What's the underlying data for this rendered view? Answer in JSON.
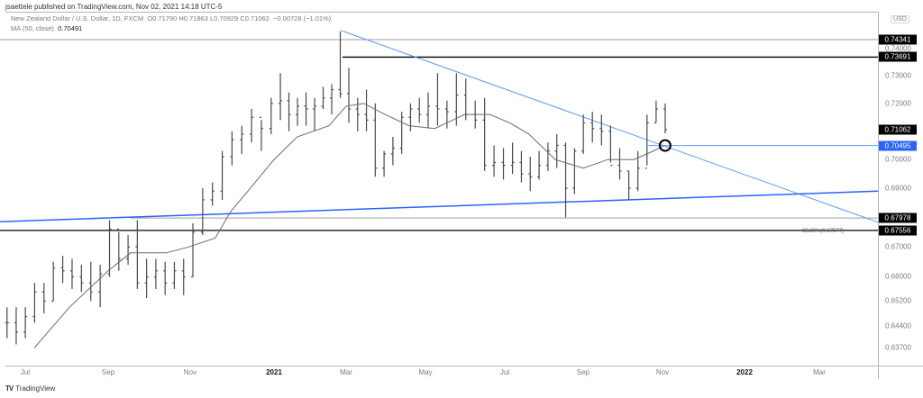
{
  "header": {
    "published": "jsaettele published on TradingView.com, Nov 02, 2021 14:18 UTC-5",
    "symbol": "New Zealand Dollar / U.S. Dollar, 1D, FXCM",
    "ohlc": "O0.71790 H0.71863 L0.70929 C0.71062",
    "change": "−0.00728 (−1.01%)",
    "ma_label": "MA (50, close)",
    "ma_value": "0.70491"
  },
  "currency": "USD",
  "footer": {
    "logo_text": "TradingView"
  },
  "chart_data": {
    "type": "bar",
    "scale": "log",
    "ylim": [
      0.6335,
      0.749
    ],
    "grid": false,
    "colors": {
      "bars": "#4a4a4a",
      "ma": "#6b6b6b",
      "trendline": "#5b9cf6",
      "support": "#2962ff",
      "price_badge": "#000000",
      "ma_badge": "#2962ff"
    },
    "x_ticks": [
      "Jul",
      "Sep",
      "Nov",
      "2021",
      "Mar",
      "May",
      "Jul",
      "Sep",
      "Nov",
      "2022",
      "Mar"
    ],
    "y_ticks": [
      "0.74000",
      "0.73000",
      "0.72000",
      "0.70000",
      "0.69000",
      "0.67000",
      "0.66000",
      "0.65200",
      "0.64400",
      "0.63700"
    ],
    "price_badges": [
      {
        "value": "0.74341",
        "style": "black"
      },
      {
        "value": "0.73691",
        "style": "black"
      },
      {
        "value": "0.71062",
        "style": "black"
      },
      {
        "value": "0.70495",
        "style": "blue"
      },
      {
        "value": "0.67978",
        "style": "black"
      },
      {
        "value": "0.67556",
        "style": "black"
      }
    ],
    "fib_label": "38.20%(0.67577)",
    "weekly_bars_fields": [
      "week",
      "high",
      "low",
      "close"
    ],
    "weekly_bars": [
      [
        "2020-06-15",
        0.65,
        0.64,
        0.645
      ],
      [
        "2020-06-22",
        0.65,
        0.638,
        0.642
      ],
      [
        "2020-06-29",
        0.65,
        0.64,
        0.647
      ],
      [
        "2020-07-06",
        0.658,
        0.645,
        0.655
      ],
      [
        "2020-07-13",
        0.658,
        0.648,
        0.652
      ],
      [
        "2020-07-20",
        0.665,
        0.652,
        0.663
      ],
      [
        "2020-07-27",
        0.667,
        0.658,
        0.662
      ],
      [
        "2020-08-03",
        0.666,
        0.656,
        0.66
      ],
      [
        "2020-08-10",
        0.664,
        0.655,
        0.658
      ],
      [
        "2020-08-17",
        0.665,
        0.652,
        0.655
      ],
      [
        "2020-08-24",
        0.664,
        0.65,
        0.661
      ],
      [
        "2020-08-31",
        0.679,
        0.66,
        0.676
      ],
      [
        "2020-09-07",
        0.675,
        0.662,
        0.666
      ],
      [
        "2020-09-14",
        0.674,
        0.664,
        0.67
      ],
      [
        "2020-09-21",
        0.679,
        0.656,
        0.658
      ],
      [
        "2020-09-28",
        0.666,
        0.653,
        0.66
      ],
      [
        "2020-10-05",
        0.666,
        0.656,
        0.662
      ],
      [
        "2020-10-12",
        0.665,
        0.654,
        0.658
      ],
      [
        "2020-10-19",
        0.665,
        0.656,
        0.662
      ],
      [
        "2020-10-26",
        0.666,
        0.654,
        0.66
      ],
      [
        "2020-11-02",
        0.678,
        0.66,
        0.675
      ],
      [
        "2020-11-09",
        0.69,
        0.674,
        0.686
      ],
      [
        "2020-11-16",
        0.692,
        0.684,
        0.689
      ],
      [
        "2020-11-23",
        0.703,
        0.686,
        0.701
      ],
      [
        "2020-11-30",
        0.71,
        0.698,
        0.707
      ],
      [
        "2020-12-07",
        0.712,
        0.702,
        0.709
      ],
      [
        "2020-12-14",
        0.718,
        0.706,
        0.715
      ],
      [
        "2020-12-21",
        0.714,
        0.703,
        0.711
      ],
      [
        "2020-12-28",
        0.722,
        0.709,
        0.72
      ],
      [
        "2021-01-04",
        0.731,
        0.714,
        0.721
      ],
      [
        "2021-01-11",
        0.724,
        0.71,
        0.716
      ],
      [
        "2021-01-18",
        0.722,
        0.712,
        0.719
      ],
      [
        "2021-01-25",
        0.724,
        0.712,
        0.718
      ],
      [
        "2021-02-01",
        0.722,
        0.71,
        0.719
      ],
      [
        "2021-02-08",
        0.726,
        0.718,
        0.722
      ],
      [
        "2021-02-15",
        0.727,
        0.716,
        0.725
      ],
      [
        "2021-02-22",
        0.7465,
        0.722,
        0.7235
      ],
      [
        "2021-03-01",
        0.733,
        0.713,
        0.718
      ],
      [
        "2021-03-08",
        0.722,
        0.71,
        0.716
      ],
      [
        "2021-03-15",
        0.725,
        0.71,
        0.714
      ],
      [
        "2021-03-22",
        0.72,
        0.694,
        0.697
      ],
      [
        "2021-03-29",
        0.703,
        0.694,
        0.702
      ],
      [
        "2021-04-05",
        0.708,
        0.698,
        0.704
      ],
      [
        "2021-04-12",
        0.717,
        0.702,
        0.715
      ],
      [
        "2021-04-19",
        0.72,
        0.71,
        0.718
      ],
      [
        "2021-04-26",
        0.722,
        0.713,
        0.716
      ],
      [
        "2021-05-03",
        0.724,
        0.711,
        0.719
      ],
      [
        "2021-05-10",
        0.731,
        0.712,
        0.718
      ],
      [
        "2021-05-17",
        0.721,
        0.711,
        0.717
      ],
      [
        "2021-05-24",
        0.731,
        0.712,
        0.723
      ],
      [
        "2021-05-31",
        0.729,
        0.714,
        0.716
      ],
      [
        "2021-06-07",
        0.721,
        0.711,
        0.714
      ],
      [
        "2021-06-14",
        0.722,
        0.696,
        0.698
      ],
      [
        "2021-06-21",
        0.705,
        0.694,
        0.699
      ],
      [
        "2021-06-28",
        0.704,
        0.693,
        0.698
      ],
      [
        "2021-07-05",
        0.706,
        0.695,
        0.699
      ],
      [
        "2021-07-12",
        0.703,
        0.692,
        0.695
      ],
      [
        "2021-07-19",
        0.701,
        0.689,
        0.694
      ],
      [
        "2021-07-26",
        0.703,
        0.693,
        0.698
      ],
      [
        "2021-08-02",
        0.706,
        0.696,
        0.703
      ],
      [
        "2021-08-09",
        0.709,
        0.697,
        0.705
      ],
      [
        "2021-08-16",
        0.706,
        0.68,
        0.69
      ],
      [
        "2021-08-23",
        0.704,
        0.688,
        0.703
      ],
      [
        "2021-08-30",
        0.716,
        0.702,
        0.713
      ],
      [
        "2021-09-06",
        0.717,
        0.706,
        0.711
      ],
      [
        "2021-09-13",
        0.716,
        0.705,
        0.71
      ],
      [
        "2021-09-20",
        0.712,
        0.699,
        0.698
      ],
      [
        "2021-09-27",
        0.704,
        0.693,
        0.696
      ],
      [
        "2021-10-04",
        0.696,
        0.686,
        0.69
      ],
      [
        "2021-10-11",
        0.703,
        0.689,
        0.697
      ],
      [
        "2021-10-18",
        0.716,
        0.698,
        0.713
      ],
      [
        "2021-10-25",
        0.721,
        0.713,
        0.718
      ],
      [
        "2021-11-01",
        0.72,
        0.7093,
        0.7106
      ]
    ],
    "ma50": [
      [
        "2020-07-08",
        0.637
      ],
      [
        "2020-08-03",
        0.65
      ],
      [
        "2020-09-01",
        0.662
      ],
      [
        "2020-09-18",
        0.668
      ],
      [
        "2020-10-15",
        0.668
      ],
      [
        "2020-11-01",
        0.67
      ],
      [
        "2020-11-20",
        0.673
      ],
      [
        "2020-12-01",
        0.682
      ],
      [
        "2020-12-15",
        0.69
      ],
      [
        "2021-01-01",
        0.7
      ],
      [
        "2021-01-20",
        0.708
      ],
      [
        "2021-02-15",
        0.712
      ],
      [
        "2021-03-01",
        0.719
      ],
      [
        "2021-03-15",
        0.72
      ],
      [
        "2021-04-01",
        0.716
      ],
      [
        "2021-04-20",
        0.712
      ],
      [
        "2021-05-10",
        0.711
      ],
      [
        "2021-06-01",
        0.716
      ],
      [
        "2021-06-20",
        0.716
      ],
      [
        "2021-07-05",
        0.713
      ],
      [
        "2021-07-20",
        0.709
      ],
      [
        "2021-08-10",
        0.7
      ],
      [
        "2021-09-01",
        0.697
      ],
      [
        "2021-09-20",
        0.7
      ],
      [
        "2021-10-10",
        0.7
      ],
      [
        "2021-10-25",
        0.703
      ],
      [
        "2021-11-02",
        0.7049
      ]
    ],
    "horizontal_levels": [
      {
        "price": 0.74341,
        "from": "2020-06-10",
        "color": "#9e9e9e"
      },
      {
        "price": 0.73691,
        "from": "2021-02-26",
        "color": "#000000"
      },
      {
        "price": 0.67978,
        "from": "2020-09-18",
        "color": "#9e9e9e"
      },
      {
        "price": 0.67556,
        "from": "2020-06-10",
        "color": "#000000"
      },
      {
        "price": 0.70495,
        "from": "2021-10-21",
        "color": "#5b9cf6"
      }
    ],
    "trendlines": [
      {
        "from": [
          "2021-02-25",
          0.7468
        ],
        "to": [
          "2021-11-03",
          0.7047
        ],
        "color": "#5b9cf6",
        "extend": "right"
      },
      {
        "from": [
          "2020-06-10",
          0.6785
        ],
        "to": [
          "2022-04-15",
          0.689
        ],
        "color": "#2962ff",
        "extend": "right"
      }
    ],
    "marker": {
      "date": "2021-11-03",
      "price": 0.70495,
      "shape": "circle"
    }
  }
}
